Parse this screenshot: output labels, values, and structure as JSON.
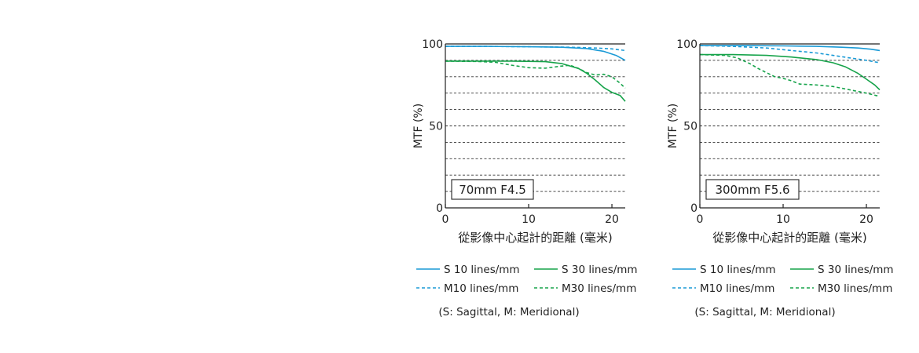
{
  "chart_data": [
    {
      "type": "line",
      "inset_label": "70mm F4.5",
      "xlabel": "從影像中心起計的距離 (毫米)",
      "ylabel": "MTF (%)",
      "xlim": [
        0,
        21.6
      ],
      "ylim": [
        0,
        100
      ],
      "x_ticks": [
        0,
        10,
        20
      ],
      "y_ticks": [
        0,
        50,
        100
      ],
      "grid_y": [
        10,
        20,
        30,
        40,
        50,
        60,
        70,
        80,
        90
      ],
      "grid": "dashed horizontal",
      "series": [
        {
          "name": "S 10 lines/mm",
          "color": "#1a9ad6",
          "dash": false,
          "x": [
            0,
            5,
            10,
            14,
            17,
            19,
            20.5,
            21.6
          ],
          "y": [
            98.5,
            98.5,
            98.3,
            98,
            97.2,
            95.5,
            93,
            90
          ]
        },
        {
          "name": "M10 lines/mm",
          "color": "#1a9ad6",
          "dash": true,
          "x": [
            0,
            5,
            10,
            15,
            18,
            20,
            21.6
          ],
          "y": [
            98.5,
            98.5,
            98.3,
            98,
            97.5,
            97,
            96
          ]
        },
        {
          "name": "S 30 lines/mm",
          "color": "#16a34a",
          "dash": false,
          "x": [
            0,
            4,
            8,
            12,
            14,
            16,
            17,
            18,
            19,
            20,
            21,
            21.6
          ],
          "y": [
            89.5,
            89.5,
            89.5,
            89.2,
            88,
            85,
            82,
            78,
            73.5,
            70.5,
            68.5,
            65
          ]
        },
        {
          "name": "M30 lines/mm",
          "color": "#16a34a",
          "dash": true,
          "x": [
            0,
            4,
            6,
            8,
            10,
            12,
            14,
            15,
            16,
            17,
            18,
            19,
            20,
            21,
            21.6
          ],
          "y": [
            89.5,
            89.3,
            88.8,
            87,
            85.5,
            85.2,
            86.5,
            87,
            85,
            82.5,
            81,
            81.5,
            80,
            76,
            73
          ]
        }
      ],
      "legend_note": "(S: Sagittal, M: Meridional)"
    },
    {
      "type": "line",
      "inset_label": "300mm F5.6",
      "xlabel": "從影像中心起計的距離 (毫米)",
      "ylabel": "MTF (%)",
      "xlim": [
        0,
        21.6
      ],
      "ylim": [
        0,
        100
      ],
      "x_ticks": [
        0,
        10,
        20
      ],
      "y_ticks": [
        0,
        50,
        100
      ],
      "grid_y": [
        10,
        20,
        30,
        40,
        50,
        60,
        70,
        80,
        90
      ],
      "grid": "dashed horizontal",
      "series": [
        {
          "name": "S 10 lines/mm",
          "color": "#1a9ad6",
          "dash": false,
          "x": [
            0,
            5,
            10,
            14,
            17,
            19,
            20.5,
            21.6
          ],
          "y": [
            99,
            99,
            98.8,
            98.5,
            98,
            97.5,
            96.8,
            96
          ]
        },
        {
          "name": "M10 lines/mm",
          "color": "#1a9ad6",
          "dash": true,
          "x": [
            0,
            4,
            8,
            11,
            14,
            16,
            18,
            20,
            21.6
          ],
          "y": [
            99,
            98.5,
            97.5,
            96,
            94.5,
            93,
            91.5,
            90,
            88.5
          ]
        },
        {
          "name": "S 30 lines/mm",
          "color": "#16a34a",
          "dash": false,
          "x": [
            0,
            4,
            8,
            11,
            14,
            16,
            17.5,
            19,
            20,
            21,
            21.6
          ],
          "y": [
            93.5,
            93.5,
            93,
            92,
            90.5,
            88.5,
            86,
            82,
            78.5,
            75,
            72
          ]
        },
        {
          "name": "M30 lines/mm",
          "color": "#16a34a",
          "dash": true,
          "x": [
            0,
            3,
            4.5,
            6,
            7,
            8,
            9,
            10,
            11,
            12,
            14,
            16,
            18,
            20,
            21.6
          ],
          "y": [
            93.5,
            93,
            91.5,
            88,
            85,
            82.5,
            80,
            79,
            77.5,
            75.5,
            75,
            74,
            72,
            70,
            68
          ]
        }
      ],
      "legend_note": "(S: Sagittal, M: Meridional)"
    }
  ]
}
